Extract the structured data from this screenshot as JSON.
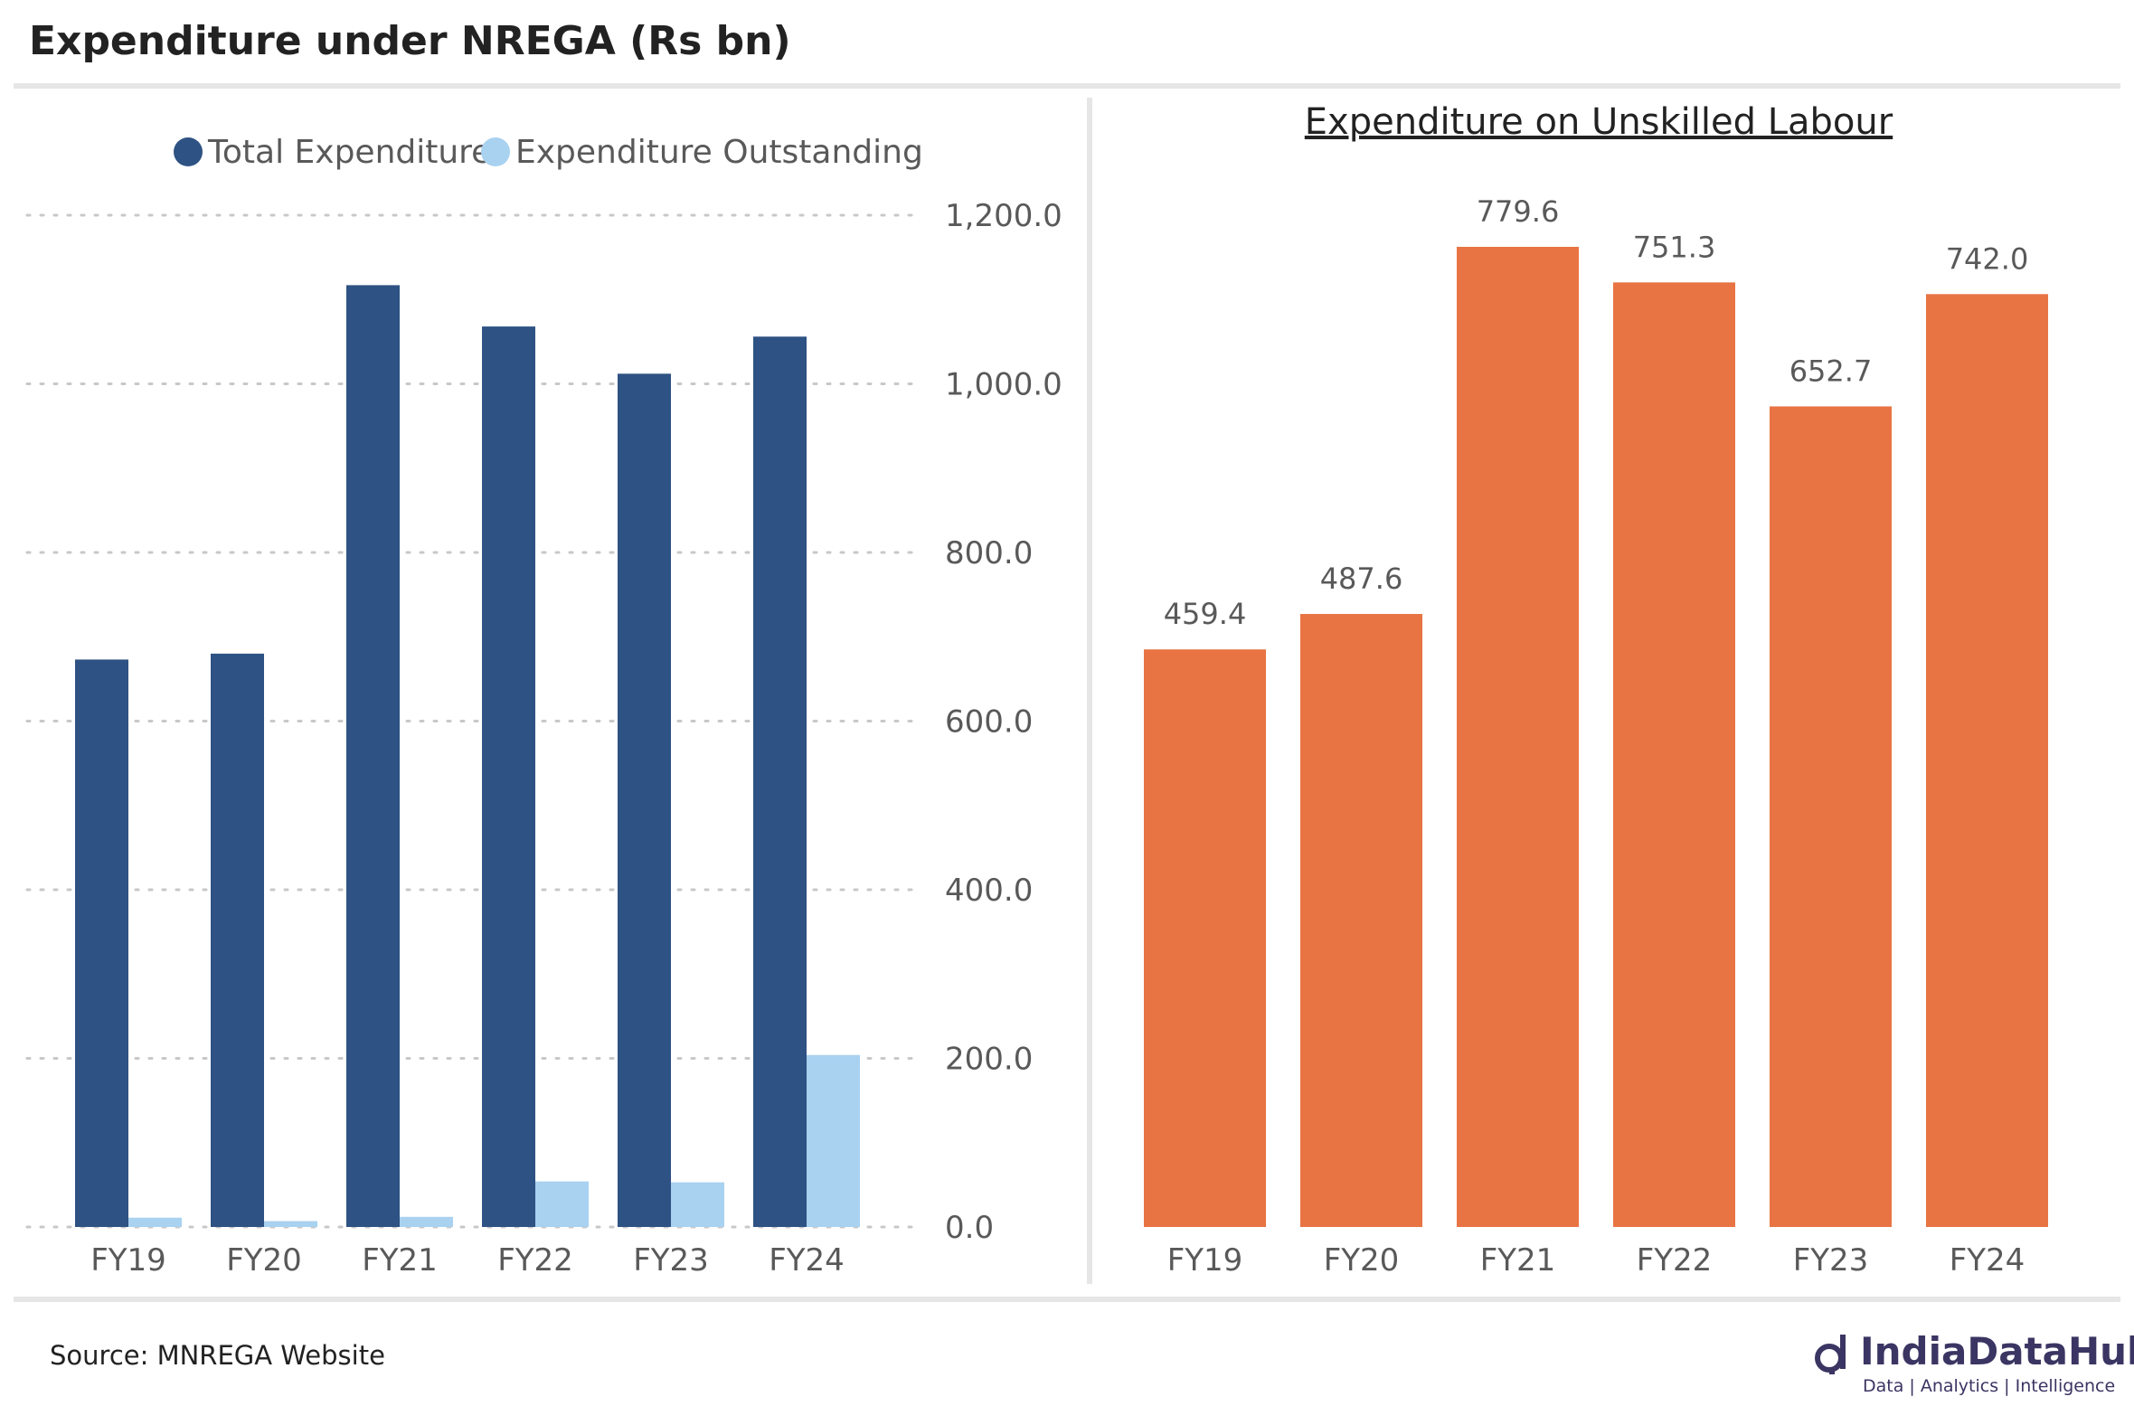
{
  "title": "Expenditure under NREGA (Rs bn)",
  "source": "Source: MNREGA Website",
  "logo": {
    "name": "IndiaDataHub",
    "tagline": "Data | Analytics | Intelligence"
  },
  "chart_data": [
    {
      "type": "bar",
      "title": "",
      "categories": [
        "FY19",
        "FY20",
        "FY21",
        "FY22",
        "FY23",
        "FY24"
      ],
      "series": [
        {
          "name": "Total Expenditure",
          "color": "#2e5283",
          "values": [
            673,
            680,
            1117,
            1068,
            1012,
            1056
          ]
        },
        {
          "name": "Expenditure Outstanding",
          "color": "#a9d1f0",
          "values": [
            11,
            7,
            12,
            54,
            53,
            204
          ]
        }
      ],
      "ylim": [
        0,
        1200
      ],
      "yticks": [
        "0.0",
        "200.0",
        "400.0",
        "600.0",
        "800.0",
        "1,000.0",
        "1,200.0"
      ],
      "ytick_values": [
        0,
        200,
        400,
        600,
        800,
        1000,
        1200
      ],
      "legend": "top",
      "grid": true
    },
    {
      "type": "bar",
      "title": "Expenditure on Unskilled Labour",
      "categories": [
        "FY19",
        "FY20",
        "FY21",
        "FY22",
        "FY23",
        "FY24"
      ],
      "series": [
        {
          "name": "Expenditure on Unskilled Labour",
          "color": "#e87444",
          "values": [
            459.4,
            487.6,
            779.6,
            751.3,
            652.7,
            742.0
          ]
        }
      ],
      "data_labels": [
        "459.4",
        "487.6",
        "779.6",
        "751.3",
        "652.7",
        "742.0"
      ],
      "grid": false
    }
  ]
}
